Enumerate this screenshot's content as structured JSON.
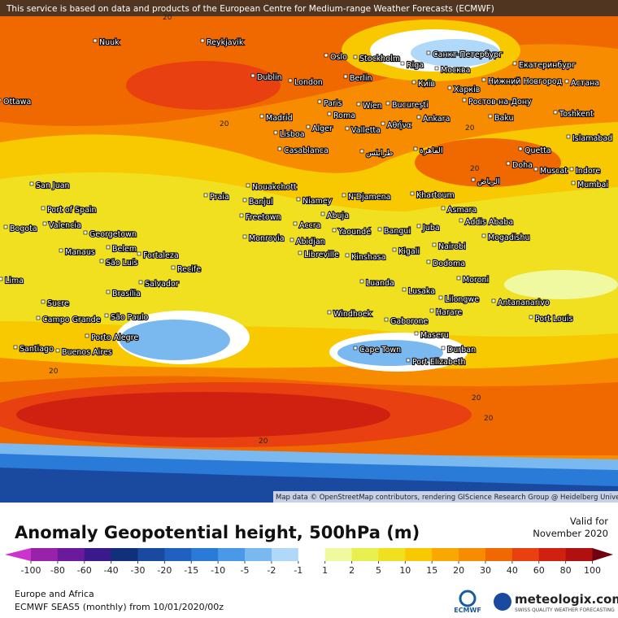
{
  "notice": "This service is based on data and products of the European Centre for Medium-range Weather Forecasts (ECMWF)",
  "map": {
    "attribution": "Map data © OpenStreetMap contributors, rendering GIScience Research Group @ Heidelberg University",
    "contour_labels": [
      20,
      20,
      20,
      20,
      20,
      20,
      20,
      20
    ],
    "cities": [
      "Nuuk",
      "Reykjavik",
      "Oslo",
      "Stockholm",
      "Riga",
      "Санкт-Петербург",
      "Екатеринбург",
      "Dublin",
      "London",
      "Berlin",
      "Москва",
      "Київ",
      "Харків",
      "Нижний Новгород",
      "Астана",
      "Ottawa",
      "Paris",
      "Wien",
      "București",
      "Ростов-на-Дону",
      "Toshkent",
      "Madrid",
      "Roma",
      "Ankara",
      "Baku",
      "Lisboa",
      "Alger",
      "Valletta",
      "Αθήνα",
      "Islamabad",
      "Casablanca",
      "Quetta",
      "طرابلس",
      "القاهرة",
      "الرياض",
      "Doha",
      "Muscat",
      "Indore",
      "Mumbai",
      "Nouakchott",
      "Praia",
      "Banjul",
      "Niamey",
      "N'Djamena",
      "Khartoum",
      "Asmara",
      "Freetown",
      "Abuja",
      "Addis Ababa",
      "Monrovia",
      "Accra",
      "Abidjan",
      "Yaoundé",
      "Bangui",
      "Juba",
      "Mogadishu",
      "Libreville",
      "Kigali",
      "Nairobi",
      "Kinshasa",
      "Dodoma",
      "Luanda",
      "Moroni",
      "Lusaka",
      "Lilongwe",
      "Antananarivo",
      "Windhoek",
      "Harare",
      "Port Louis",
      "Gaborone",
      "Maseru",
      "Cape Town",
      "Durban",
      "Port Elizabeth",
      "San Juan",
      "Port of Spain",
      "Bogota",
      "Valencia",
      "Georgetown",
      "Belem",
      "Fortaleza",
      "Manaus",
      "São Luís",
      "Recife",
      "Lima",
      "Brasília",
      "Salvador",
      "Sucre",
      "São Paulo",
      "Campo Grande",
      "Porto Alegre",
      "Santiago",
      "Buenos Aires"
    ]
  },
  "legend": {
    "title": "Anomaly Geopotential height, 500hPa (m)",
    "valid_label": "Valid for",
    "valid_date": "November 2020",
    "levels": [
      -100,
      -80,
      -60,
      -40,
      -30,
      -20,
      -15,
      -10,
      -5,
      -2,
      -1,
      1,
      2,
      5,
      10,
      15,
      20,
      30,
      40,
      60,
      80,
      100
    ],
    "colors": [
      "#cc33cc",
      "#9922aa",
      "#6a1a9a",
      "#3a1a8a",
      "#10307a",
      "#1a4aa0",
      "#2060c0",
      "#2a7ad8",
      "#4a98e8",
      "#7ab8f0",
      "#b0d8f8",
      "#ffffff",
      "#f0f8a0",
      "#e8f050",
      "#f0e020",
      "#f8c800",
      "#f8a800",
      "#f88c00",
      "#f06800",
      "#e84010",
      "#d02010",
      "#b01010",
      "#700010"
    ]
  },
  "footer": {
    "region": "Europe and Africa",
    "run": "ECMWF SEAS5 (monthly)  from  10/01/2020/00z",
    "ecmwf": "ECMWF",
    "brand": "meteologix.com",
    "tagline": "SWISS QUALITY WEATHER FORECASTING"
  }
}
